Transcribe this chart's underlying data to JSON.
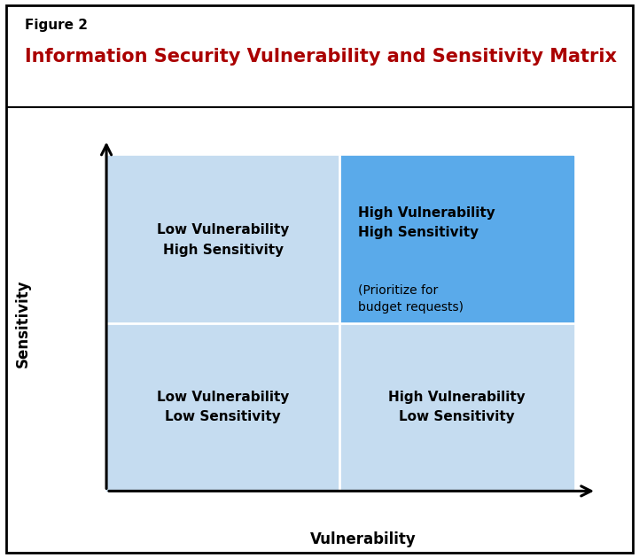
{
  "figure_label": "Figure 2",
  "title": "Information Security Vulnerability and Sensitivity Matrix",
  "title_color": "#AA0000",
  "figure_label_color": "#000000",
  "background_color": "#FFFFFF",
  "quadrant_colors": {
    "top_left": "#C5DCF0",
    "top_right": "#5AAAEA",
    "bottom_left": "#C5DCF0",
    "bottom_right": "#C5DCF0"
  },
  "quadrant_labels": {
    "top_left": "Low Vulnerability\nHigh Sensitivity",
    "top_right_bold": "High Vulnerability\nHigh Sensitivity",
    "top_right_sub": "(Prioritize for\nbudget requests)",
    "bottom_left": "Low Vulnerability\nLow Sensitivity",
    "bottom_right": "High Vulnerability\nLow Sensitivity"
  },
  "x_axis_label": "Vulnerability",
  "y_axis_label": "Sensitivity",
  "figure_label_fontsize": 11,
  "title_fontsize": 15,
  "axis_label_fontsize": 12,
  "quadrant_label_fontsize": 11,
  "sub_label_fontsize": 10
}
